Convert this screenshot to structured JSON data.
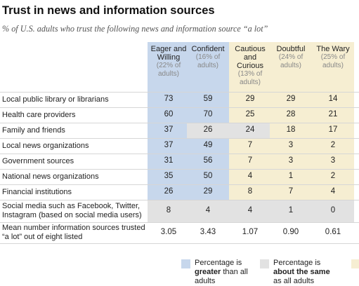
{
  "title": "Trust in news and information sources",
  "subtitle": "% of U.S. adults who trust the following news and information source “a lot”",
  "colors": {
    "greater": "#c7d7ec",
    "same": "#e2e2e2",
    "less": "#f6eed2"
  },
  "chart_data": {
    "type": "table",
    "columns": [
      {
        "name": "Eager and Willing",
        "share": "(22% of adults)"
      },
      {
        "name": "Confident",
        "share": "(16% of adults)"
      },
      {
        "name": "Cautious and Curious",
        "share": "(13% of adults)"
      },
      {
        "name": "Doubtful",
        "share": "(24% of adults)"
      },
      {
        "name": "The Wary",
        "share": "(25% of adults)"
      }
    ],
    "rows": [
      {
        "label": "Local public library or librarians",
        "values": [
          "73",
          "59",
          "29",
          "29",
          "14"
        ],
        "shade": [
          "greater",
          "greater",
          "less",
          "less",
          "less"
        ]
      },
      {
        "label": "Health care providers",
        "values": [
          "60",
          "70",
          "25",
          "28",
          "21"
        ],
        "shade": [
          "greater",
          "greater",
          "less",
          "less",
          "less"
        ]
      },
      {
        "label": "Family and friends",
        "values": [
          "37",
          "26",
          "24",
          "18",
          "17"
        ],
        "shade": [
          "greater",
          "same",
          "same",
          "less",
          "less"
        ]
      },
      {
        "label": "Local news organizations",
        "values": [
          "37",
          "49",
          "7",
          "3",
          "2"
        ],
        "shade": [
          "greater",
          "greater",
          "less",
          "less",
          "less"
        ]
      },
      {
        "label": "Government sources",
        "values": [
          "31",
          "56",
          "7",
          "3",
          "3"
        ],
        "shade": [
          "greater",
          "greater",
          "less",
          "less",
          "less"
        ]
      },
      {
        "label": "National news organizations",
        "values": [
          "35",
          "50",
          "4",
          "1",
          "2"
        ],
        "shade": [
          "greater",
          "greater",
          "less",
          "less",
          "less"
        ]
      },
      {
        "label": "Financial institutions",
        "values": [
          "26",
          "29",
          "8",
          "7",
          "4"
        ],
        "shade": [
          "greater",
          "greater",
          "less",
          "less",
          "less"
        ]
      },
      {
        "label": "Social media such as Facebook, Twitter, Instagram (based on social media users)",
        "values": [
          "8",
          "4",
          "4",
          "1",
          "0"
        ],
        "shade": [
          "same",
          "same",
          "same",
          "same",
          "same"
        ]
      },
      {
        "label": "Mean number information sources trusted “a lot” out of eight listed",
        "values": [
          "3.05",
          "3.43",
          "1.07",
          "0.90",
          "0.61"
        ],
        "shade": [
          "none",
          "none",
          "none",
          "none",
          "none"
        ]
      }
    ],
    "legend": [
      {
        "key": "greater",
        "text_before": "Percentage is",
        "text_bold": "greater",
        "text_after": "than all adults"
      },
      {
        "key": "same",
        "text_before": "Percentage is",
        "text_bold": "about the same",
        "text_after": "as all adults"
      },
      {
        "key": "less",
        "text_before": "",
        "text_bold": "",
        "text_after": ""
      }
    ]
  }
}
